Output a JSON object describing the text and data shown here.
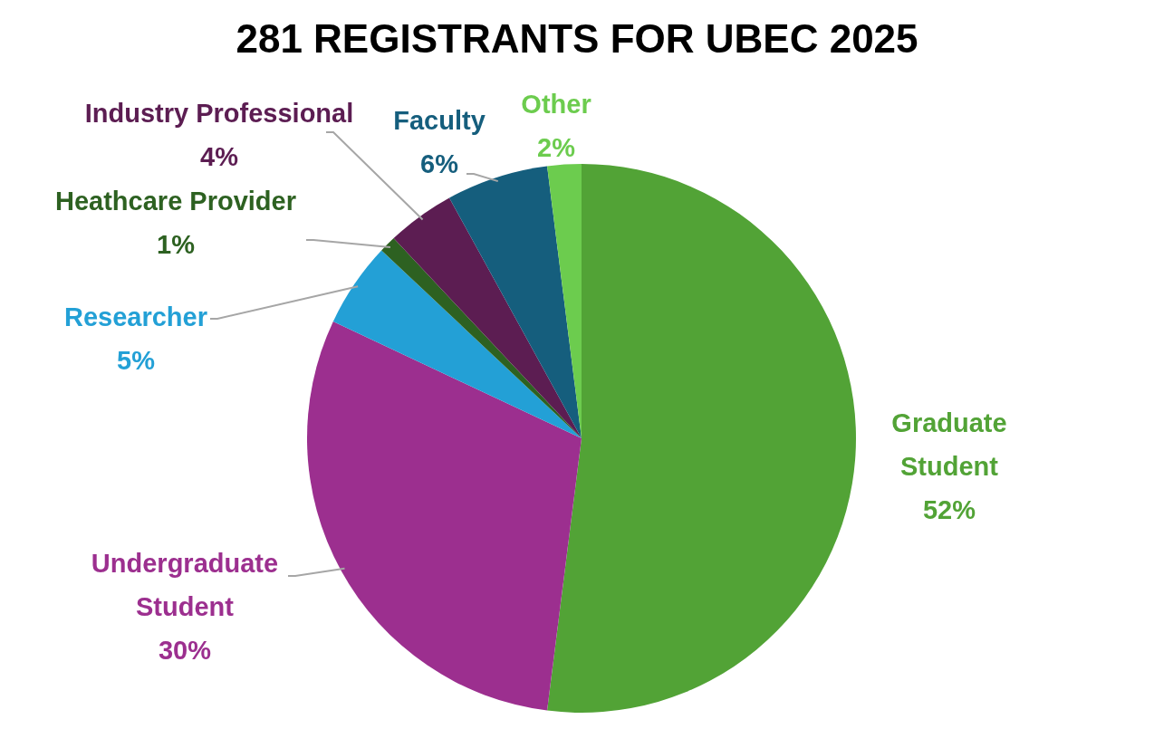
{
  "chart_data": {
    "type": "pie",
    "title": "281 REGISTRANTS FOR UBEC 2025",
    "categories": [
      "Graduate Student",
      "Undergraduate Student",
      "Researcher",
      "Heathcare Provider",
      "Industry Professional",
      "Faculty",
      "Other"
    ],
    "values": [
      52,
      30,
      5,
      1,
      4,
      6,
      2
    ],
    "colors": [
      "#52a336",
      "#9c2f8f",
      "#23a0d6",
      "#2d6121",
      "#5c1d52",
      "#155e7d",
      "#6ccc4e"
    ],
    "value_labels": [
      "52%",
      "30%",
      "5%",
      "1%",
      "4%",
      "6%",
      "2%"
    ]
  }
}
